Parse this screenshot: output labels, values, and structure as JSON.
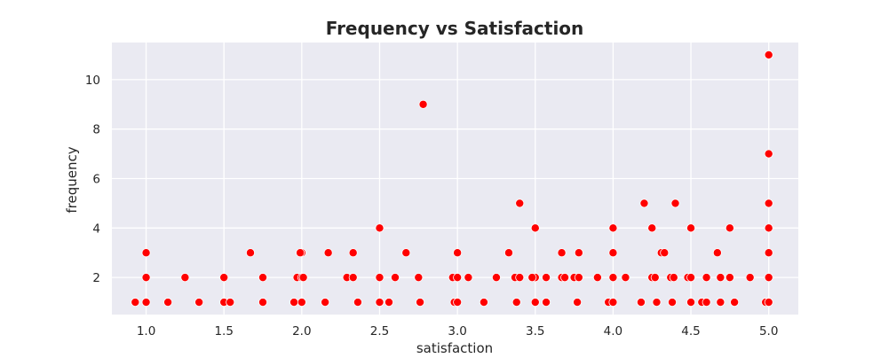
{
  "colors": {
    "plot_background": "#eaeaf2",
    "grid": "#ffffff",
    "marker": "#ff0000",
    "marker_edge": "#ffffff",
    "text": "#262626"
  },
  "chart_data": {
    "type": "scatter",
    "title": "Frequency vs Satisfaction",
    "xlabel": "satisfaction",
    "ylabel": "frequency",
    "xlim": [
      0.78,
      5.19
    ],
    "ylim": [
      0.5,
      11.5
    ],
    "grid": true,
    "xticks": [
      1.0,
      1.5,
      2.0,
      2.5,
      3.0,
      3.5,
      4.0,
      4.5,
      5.0
    ],
    "xtick_labels": [
      "1.0",
      "1.5",
      "2.0",
      "2.5",
      "3.0",
      "3.5",
      "4.0",
      "4.5",
      "5.0"
    ],
    "yticks": [
      2,
      4,
      6,
      8,
      10
    ],
    "ytick_labels": [
      "2",
      "4",
      "6",
      "8",
      "10"
    ],
    "points": [
      {
        "x": 0.93,
        "y": 1
      },
      {
        "x": 1.0,
        "y": 1
      },
      {
        "x": 1.0,
        "y": 2
      },
      {
        "x": 1.0,
        "y": 3
      },
      {
        "x": 1.14,
        "y": 1
      },
      {
        "x": 1.25,
        "y": 2
      },
      {
        "x": 1.34,
        "y": 1
      },
      {
        "x": 1.5,
        "y": 1
      },
      {
        "x": 1.5,
        "y": 2
      },
      {
        "x": 1.54,
        "y": 1
      },
      {
        "x": 1.67,
        "y": 3
      },
      {
        "x": 1.75,
        "y": 1
      },
      {
        "x": 1.75,
        "y": 2
      },
      {
        "x": 1.95,
        "y": 1
      },
      {
        "x": 1.97,
        "y": 2
      },
      {
        "x": 2.0,
        "y": 2
      },
      {
        "x": 2.0,
        "y": 3
      },
      {
        "x": 1.99,
        "y": 3
      },
      {
        "x": 2.0,
        "y": 1
      },
      {
        "x": 2.01,
        "y": 2
      },
      {
        "x": 2.15,
        "y": 1
      },
      {
        "x": 2.17,
        "y": 3
      },
      {
        "x": 2.29,
        "y": 2
      },
      {
        "x": 2.33,
        "y": 3
      },
      {
        "x": 2.33,
        "y": 2
      },
      {
        "x": 2.36,
        "y": 1
      },
      {
        "x": 2.5,
        "y": 4
      },
      {
        "x": 2.5,
        "y": 2
      },
      {
        "x": 2.5,
        "y": 1
      },
      {
        "x": 2.56,
        "y": 1
      },
      {
        "x": 2.6,
        "y": 2
      },
      {
        "x": 2.67,
        "y": 3
      },
      {
        "x": 2.75,
        "y": 2
      },
      {
        "x": 2.76,
        "y": 1
      },
      {
        "x": 2.78,
        "y": 9
      },
      {
        "x": 2.97,
        "y": 2
      },
      {
        "x": 2.98,
        "y": 1
      },
      {
        "x": 3.0,
        "y": 3
      },
      {
        "x": 3.0,
        "y": 2
      },
      {
        "x": 3.0,
        "y": 1
      },
      {
        "x": 3.07,
        "y": 2
      },
      {
        "x": 3.17,
        "y": 1
      },
      {
        "x": 3.25,
        "y": 2
      },
      {
        "x": 3.33,
        "y": 3
      },
      {
        "x": 3.37,
        "y": 2
      },
      {
        "x": 3.38,
        "y": 1
      },
      {
        "x": 3.4,
        "y": 2
      },
      {
        "x": 3.4,
        "y": 5
      },
      {
        "x": 3.5,
        "y": 4
      },
      {
        "x": 3.5,
        "y": 2
      },
      {
        "x": 3.5,
        "y": 1
      },
      {
        "x": 3.48,
        "y": 2
      },
      {
        "x": 3.57,
        "y": 2
      },
      {
        "x": 3.57,
        "y": 1
      },
      {
        "x": 3.67,
        "y": 3
      },
      {
        "x": 3.67,
        "y": 2
      },
      {
        "x": 3.69,
        "y": 2
      },
      {
        "x": 3.75,
        "y": 2
      },
      {
        "x": 3.78,
        "y": 3
      },
      {
        "x": 3.77,
        "y": 1
      },
      {
        "x": 3.78,
        "y": 2
      },
      {
        "x": 3.9,
        "y": 2
      },
      {
        "x": 3.97,
        "y": 1
      },
      {
        "x": 4.0,
        "y": 4
      },
      {
        "x": 4.0,
        "y": 3
      },
      {
        "x": 4.0,
        "y": 2
      },
      {
        "x": 4.0,
        "y": 1
      },
      {
        "x": 4.08,
        "y": 2
      },
      {
        "x": 4.18,
        "y": 1
      },
      {
        "x": 4.2,
        "y": 5
      },
      {
        "x": 4.25,
        "y": 4
      },
      {
        "x": 4.25,
        "y": 2
      },
      {
        "x": 4.27,
        "y": 2
      },
      {
        "x": 4.28,
        "y": 1
      },
      {
        "x": 4.31,
        "y": 3
      },
      {
        "x": 4.33,
        "y": 3
      },
      {
        "x": 4.37,
        "y": 2
      },
      {
        "x": 4.38,
        "y": 1
      },
      {
        "x": 4.39,
        "y": 2
      },
      {
        "x": 4.4,
        "y": 5
      },
      {
        "x": 4.48,
        "y": 2
      },
      {
        "x": 4.5,
        "y": 4
      },
      {
        "x": 4.5,
        "y": 2
      },
      {
        "x": 4.5,
        "y": 1
      },
      {
        "x": 4.57,
        "y": 1
      },
      {
        "x": 4.6,
        "y": 2
      },
      {
        "x": 4.6,
        "y": 1
      },
      {
        "x": 4.67,
        "y": 3
      },
      {
        "x": 4.69,
        "y": 2
      },
      {
        "x": 4.69,
        "y": 1
      },
      {
        "x": 4.75,
        "y": 4
      },
      {
        "x": 4.75,
        "y": 2
      },
      {
        "x": 4.78,
        "y": 1
      },
      {
        "x": 4.88,
        "y": 2
      },
      {
        "x": 4.98,
        "y": 1
      },
      {
        "x": 5.0,
        "y": 11
      },
      {
        "x": 5.0,
        "y": 7
      },
      {
        "x": 5.0,
        "y": 5
      },
      {
        "x": 5.0,
        "y": 4
      },
      {
        "x": 5.0,
        "y": 3
      },
      {
        "x": 5.0,
        "y": 2
      },
      {
        "x": 5.0,
        "y": 1
      }
    ]
  }
}
